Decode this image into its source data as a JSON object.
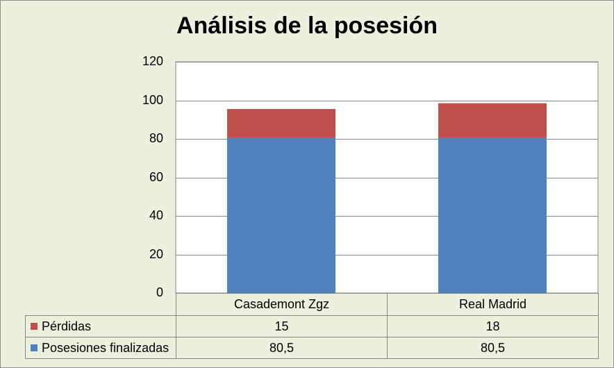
{
  "chart_data": {
    "type": "bar",
    "stacked": true,
    "title": "Análisis de la posesión",
    "categories": [
      "Casademont Zgz",
      "Real Madrid"
    ],
    "series": [
      {
        "name": "Posesiones finalizadas",
        "values": [
          80.5,
          80.5
        ],
        "labels": [
          "80,5",
          "80,5"
        ],
        "color": "#4f81bd"
      },
      {
        "name": "Pérdidas",
        "values": [
          15,
          18
        ],
        "labels": [
          "15",
          "18"
        ],
        "color": "#c0504d"
      }
    ],
    "ylim": [
      0,
      120
    ],
    "yticks": [
      "0",
      "20",
      "40",
      "60",
      "80",
      "100",
      "120"
    ],
    "grid": true,
    "legend": "data-table"
  }
}
